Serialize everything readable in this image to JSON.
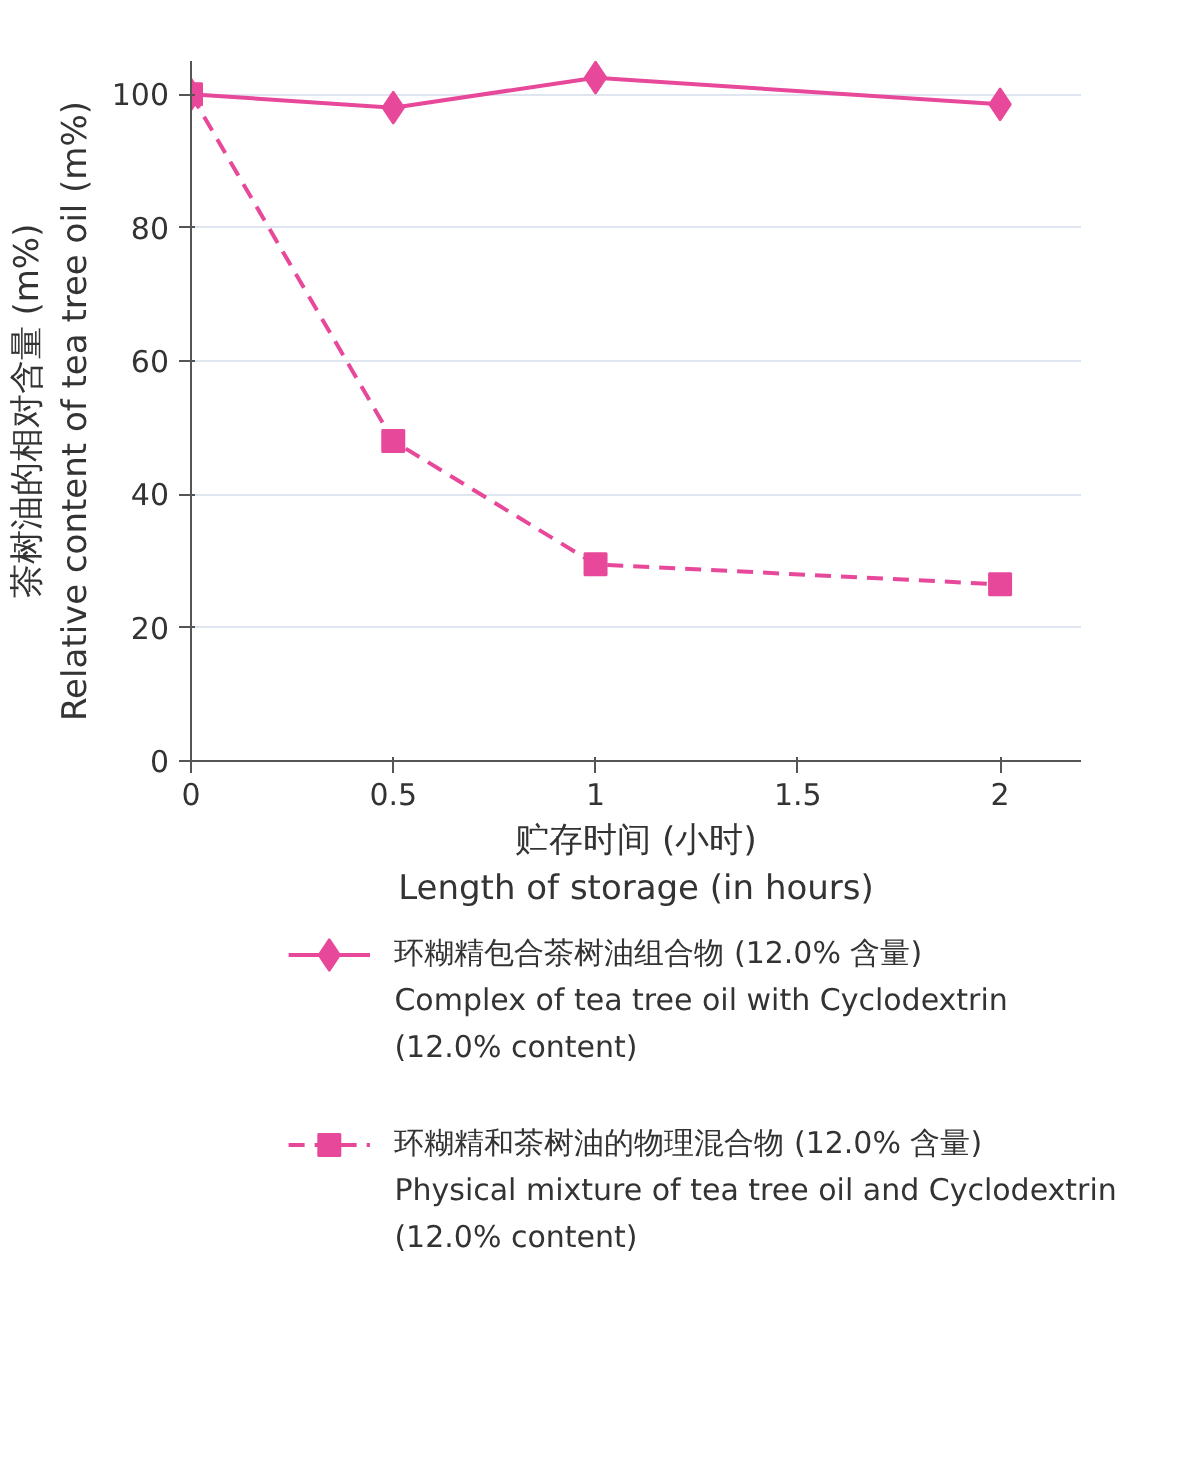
{
  "chart_data": {
    "type": "line",
    "xlabel": "贮存时间 (小时)\nLength of storage (in hours)",
    "ylabel": "茶树油的相对含量 (m%)\nRelative content of tea tree oil (m%)",
    "x": [
      0,
      0.5,
      1,
      2
    ],
    "xlim": [
      0,
      2.2
    ],
    "xticks": [
      0,
      0.5,
      1,
      1.5,
      2
    ],
    "ylim": [
      0,
      105
    ],
    "yticks": [
      0,
      20,
      40,
      60,
      80,
      100
    ],
    "grid": "y",
    "legend": "bottom",
    "series": [
      {
        "name": "环糊精包合茶树油组合物 (12.0% 含量)\nComplex of tea tree oil with Cyclodextrin\n (12.0% content)",
        "color": "#e8489a",
        "marker": "diamond",
        "line_style": "solid",
        "values": [
          100,
          98,
          102.5,
          98.5
        ]
      },
      {
        "name": "环糊精和茶树油的物理混合物 (12.0% 含量)\nPhysical mixture of tea tree oil and Cyclodextrin\n(12.0% content)",
        "color": "#e8489a",
        "marker": "square",
        "line_style": "dashed",
        "values": [
          100,
          48,
          29.5,
          26.5
        ]
      }
    ]
  }
}
